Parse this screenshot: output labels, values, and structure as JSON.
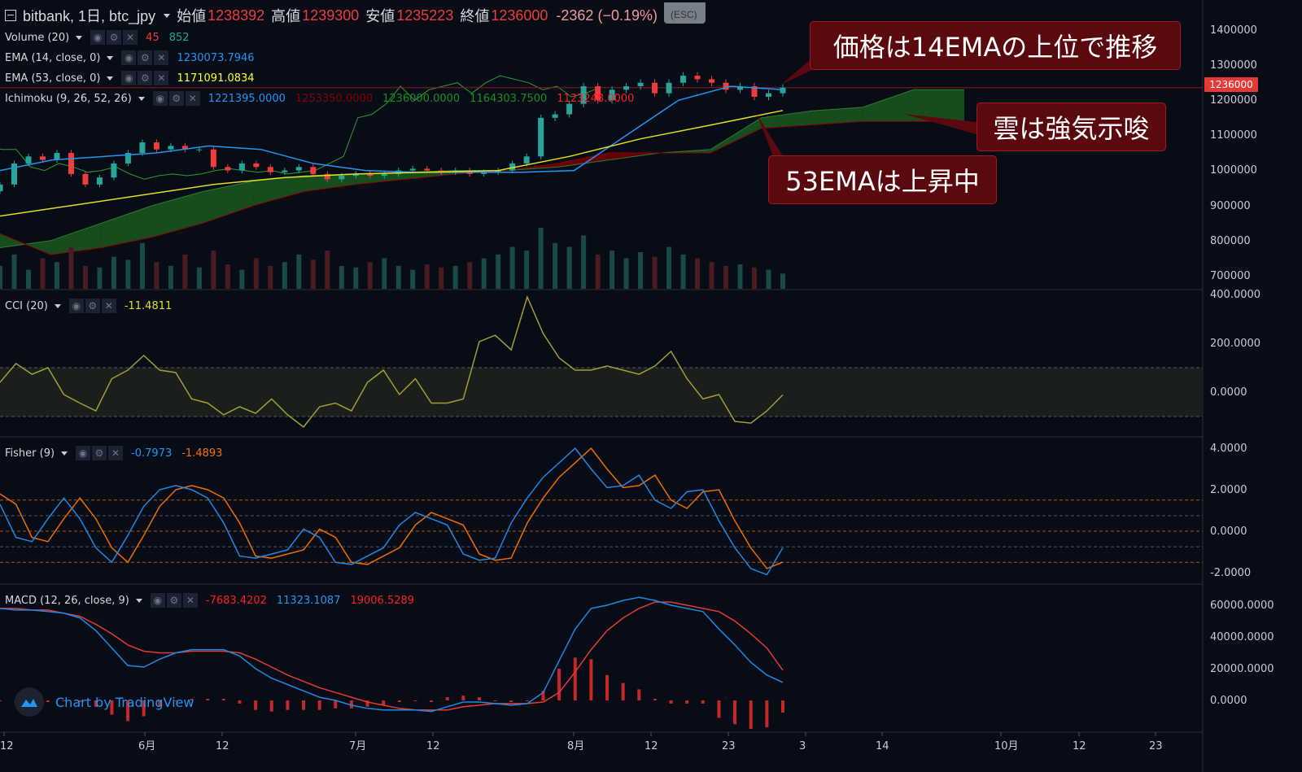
{
  "header": {
    "title": "bitbank, 1日, btc_jpy",
    "open_label": "始値",
    "open": "1238392",
    "high_label": "高値",
    "high": "1239300",
    "low_label": "安値",
    "low": "1235223",
    "close_label": "終値",
    "close": "1236000",
    "change": "-2362 (−0.19%)",
    "tooltip": "(ESC)"
  },
  "legends": {
    "volume": {
      "name": "Volume (20)",
      "values": [
        "45",
        "852"
      ]
    },
    "ema14": {
      "name": "EMA (14, close, 0)",
      "value": "1230073.7946"
    },
    "ema53": {
      "name": "EMA (53, close, 0)",
      "value": "1171091.0834"
    },
    "ichimoku": {
      "name": "Ichimoku (9, 26, 52, 26)",
      "values": [
        "1221395.0000",
        "1253350.0000",
        "1236000.0000",
        "1164303.7500",
        "1123248.0000"
      ]
    },
    "cci": {
      "name": "CCI (20)",
      "value": "-11.4811"
    },
    "fisher": {
      "name": "Fisher (9)",
      "values": [
        "-0.7973",
        "-1.4893"
      ]
    },
    "macd": {
      "name": "MACD (12, 26, close, 9)",
      "values": [
        "-7683.4202",
        "11323.1087",
        "19006.5289"
      ]
    }
  },
  "icons": {
    "eye": "eye-icon",
    "gear": "gear-icon",
    "close": "close-icon"
  },
  "annotations": [
    {
      "text": "価格は14EMAの上位で推移"
    },
    {
      "text": "雲は強気示唆"
    },
    {
      "text": "53EMAは上昇中"
    }
  ],
  "watermark": "Chart by TradingView",
  "current_price_label": "1236000",
  "colors": {
    "up": "#26a69a",
    "down": "#ef3c3c",
    "ema14": "#2196f3",
    "ema53": "#e0e020",
    "cloud_bull": "#1b5e20",
    "cloud_bear": "#7f0000",
    "cci": "#a0a030",
    "fisher": "#1e88e5",
    "trigger": "#ef6c00",
    "macd": "#1e88e5",
    "signal": "#e53935",
    "hist": "#c62828"
  },
  "chart_data": [
    {
      "type": "candlestick",
      "pane": "price",
      "ylim": [
        700000,
        1400000
      ],
      "yticks": [
        "1400000",
        "1300000",
        "1200000",
        "1100000",
        "1000000",
        "900000",
        "800000",
        "700000"
      ],
      "close": [
        960000,
        1020000,
        1040000,
        1030000,
        1050000,
        990000,
        960000,
        980000,
        1020000,
        1050000,
        1080000,
        1060000,
        1070000,
        1060000,
        1060000,
        1010000,
        1000000,
        1020000,
        1010000,
        995000,
        1000000,
        1010000,
        990000,
        975000,
        985000,
        990000,
        985000,
        990000,
        1000000,
        1005000,
        1000000,
        995000,
        1000000,
        990000,
        995000,
        1000000,
        1020000,
        1040000,
        1150000,
        1160000,
        1190000,
        1240000,
        1200000,
        1230000,
        1240000,
        1250000,
        1220000,
        1250000,
        1270000,
        1260000,
        1250000,
        1230000,
        1240000,
        1210000,
        1220000,
        1236000
      ],
      "volume": [
        30,
        45,
        25,
        40,
        35,
        55,
        30,
        28,
        42,
        38,
        60,
        35,
        30,
        45,
        28,
        50,
        32,
        25,
        40,
        30,
        35,
        45,
        38,
        50,
        30,
        28,
        35,
        40,
        30,
        25,
        32,
        28,
        30,
        35,
        40,
        45,
        55,
        50,
        80,
        60,
        55,
        70,
        45,
        50,
        40,
        48,
        42,
        55,
        45,
        40,
        35,
        30,
        32,
        28,
        25,
        20
      ],
      "ema14": [
        1000000,
        1030000,
        1040000,
        1050000,
        1070000,
        1060000,
        1020000,
        1000000,
        995000,
        995000,
        995000,
        1000000,
        1100000,
        1200000,
        1240000,
        1230074
      ],
      "ema53": [
        870000,
        900000,
        930000,
        960000,
        980000,
        990000,
        995000,
        1000000,
        1040000,
        1090000,
        1130000,
        1171091
      ],
      "ichimoku_span_a": [
        780000,
        800000,
        850000,
        900000,
        940000,
        970000,
        985000,
        990000,
        995000,
        1000000,
        1000000,
        1010000,
        1030000,
        1050000,
        1060000,
        1150000,
        1170000,
        1180000,
        1230000,
        1230000
      ],
      "ichimoku_span_b": [
        820000,
        760000,
        780000,
        810000,
        850000,
        900000,
        940000,
        960000,
        975000,
        990000,
        1000000,
        1020000,
        1050000,
        1050000,
        1050000,
        1120000,
        1130000,
        1140000,
        1140000,
        1140000
      ],
      "current_price": 1236000
    },
    {
      "type": "line",
      "pane": "cci",
      "ylim": [
        -180,
        420
      ],
      "yticks": [
        "400.0000",
        "200.0000",
        "0.0000"
      ],
      "band": [
        -100,
        100
      ],
      "values": [
        40,
        117,
        73,
        100,
        -10,
        -45,
        -77,
        55,
        90,
        150,
        90,
        80,
        -28,
        -45,
        -93,
        -60,
        -87,
        -28,
        -93,
        -143,
        -60,
        -45,
        -77,
        40,
        90,
        -10,
        55,
        -45,
        -45,
        -28,
        207,
        233,
        173,
        390,
        240,
        140,
        90,
        90,
        107,
        90,
        73,
        107,
        167,
        55,
        -28,
        -10,
        -120,
        -127,
        -77,
        -11.48
      ]
    },
    {
      "type": "line",
      "pane": "fisher",
      "ylim": [
        -2.6,
        4.4
      ],
      "yticks": [
        "4.0000",
        "2.0000",
        "0.0000",
        "-2.0000"
      ],
      "levels": [
        1.5,
        0.75,
        0,
        -0.75,
        -1.5
      ],
      "fisher": [
        1.3,
        -0.3,
        -0.5,
        0.6,
        1.6,
        0.6,
        -0.8,
        -1.5,
        -0.2,
        1.2,
        2.0,
        2.2,
        2.0,
        1.6,
        0.4,
        -1.2,
        -1.3,
        -1.1,
        -0.9,
        0.1,
        -0.3,
        -1.5,
        -1.6,
        -1.2,
        -0.8,
        0.3,
        0.9,
        0.6,
        0.3,
        -1.1,
        -1.4,
        -1.3,
        0.4,
        1.6,
        2.6,
        3.3,
        4.0,
        3.0,
        2.1,
        2.2,
        2.7,
        1.5,
        1.1,
        1.9,
        2.0,
        0.5,
        -0.8,
        -1.8,
        -2.1,
        -0.7973
      ],
      "trigger": [
        1.8,
        1.3,
        -0.3,
        -0.5,
        0.6,
        1.6,
        0.6,
        -0.8,
        -1.5,
        -0.2,
        1.2,
        2.0,
        2.2,
        2.0,
        1.6,
        0.4,
        -1.2,
        -1.3,
        -1.1,
        -0.9,
        0.1,
        -0.3,
        -1.5,
        -1.6,
        -1.2,
        -0.8,
        0.3,
        0.9,
        0.6,
        0.3,
        -1.1,
        -1.4,
        -1.3,
        0.4,
        1.6,
        2.6,
        3.3,
        4.0,
        3.0,
        2.1,
        2.2,
        2.7,
        1.5,
        1.1,
        1.9,
        2.0,
        0.5,
        -0.8,
        -1.8,
        -1.4893
      ]
    },
    {
      "type": "line",
      "pane": "macd",
      "ylim": [
        -20000,
        68000
      ],
      "yticks": [
        "60000.0000",
        "40000.0000",
        "20000.0000",
        "0.0000"
      ],
      "macd": [
        58000,
        57000,
        57000,
        56000,
        55000,
        52000,
        44000,
        33000,
        22000,
        21000,
        26000,
        30000,
        32000,
        32000,
        32000,
        28000,
        20000,
        14000,
        10000,
        6000,
        2000,
        0,
        -3000,
        -5000,
        -6000,
        -6000,
        -6000,
        -7000,
        -4000,
        -1000,
        -1000,
        -2000,
        -3000,
        -2000,
        5000,
        25000,
        45000,
        58000,
        60000,
        63000,
        65000,
        63000,
        60000,
        58000,
        56000,
        45000,
        35000,
        24000,
        16000,
        11323
      ],
      "signal": [
        58000,
        58000,
        57000,
        57000,
        55000,
        53000,
        48000,
        42000,
        35000,
        31000,
        30000,
        30000,
        31000,
        31000,
        31000,
        30000,
        26000,
        21000,
        16000,
        12000,
        8000,
        5000,
        2000,
        -1000,
        -3000,
        -5000,
        -6000,
        -6000,
        -6000,
        -4000,
        -3000,
        -2000,
        -2000,
        -2000,
        -1000,
        5000,
        18000,
        32000,
        44000,
        52000,
        58000,
        62000,
        62000,
        60000,
        58000,
        56000,
        50000,
        42000,
        33000,
        19007
      ]
    }
  ],
  "x_axis": {
    "ticks": [
      "12",
      "6月",
      "12",
      "7月",
      "12",
      "8月",
      "12",
      "23",
      "3",
      "14",
      "10月",
      "12",
      "23"
    ]
  }
}
